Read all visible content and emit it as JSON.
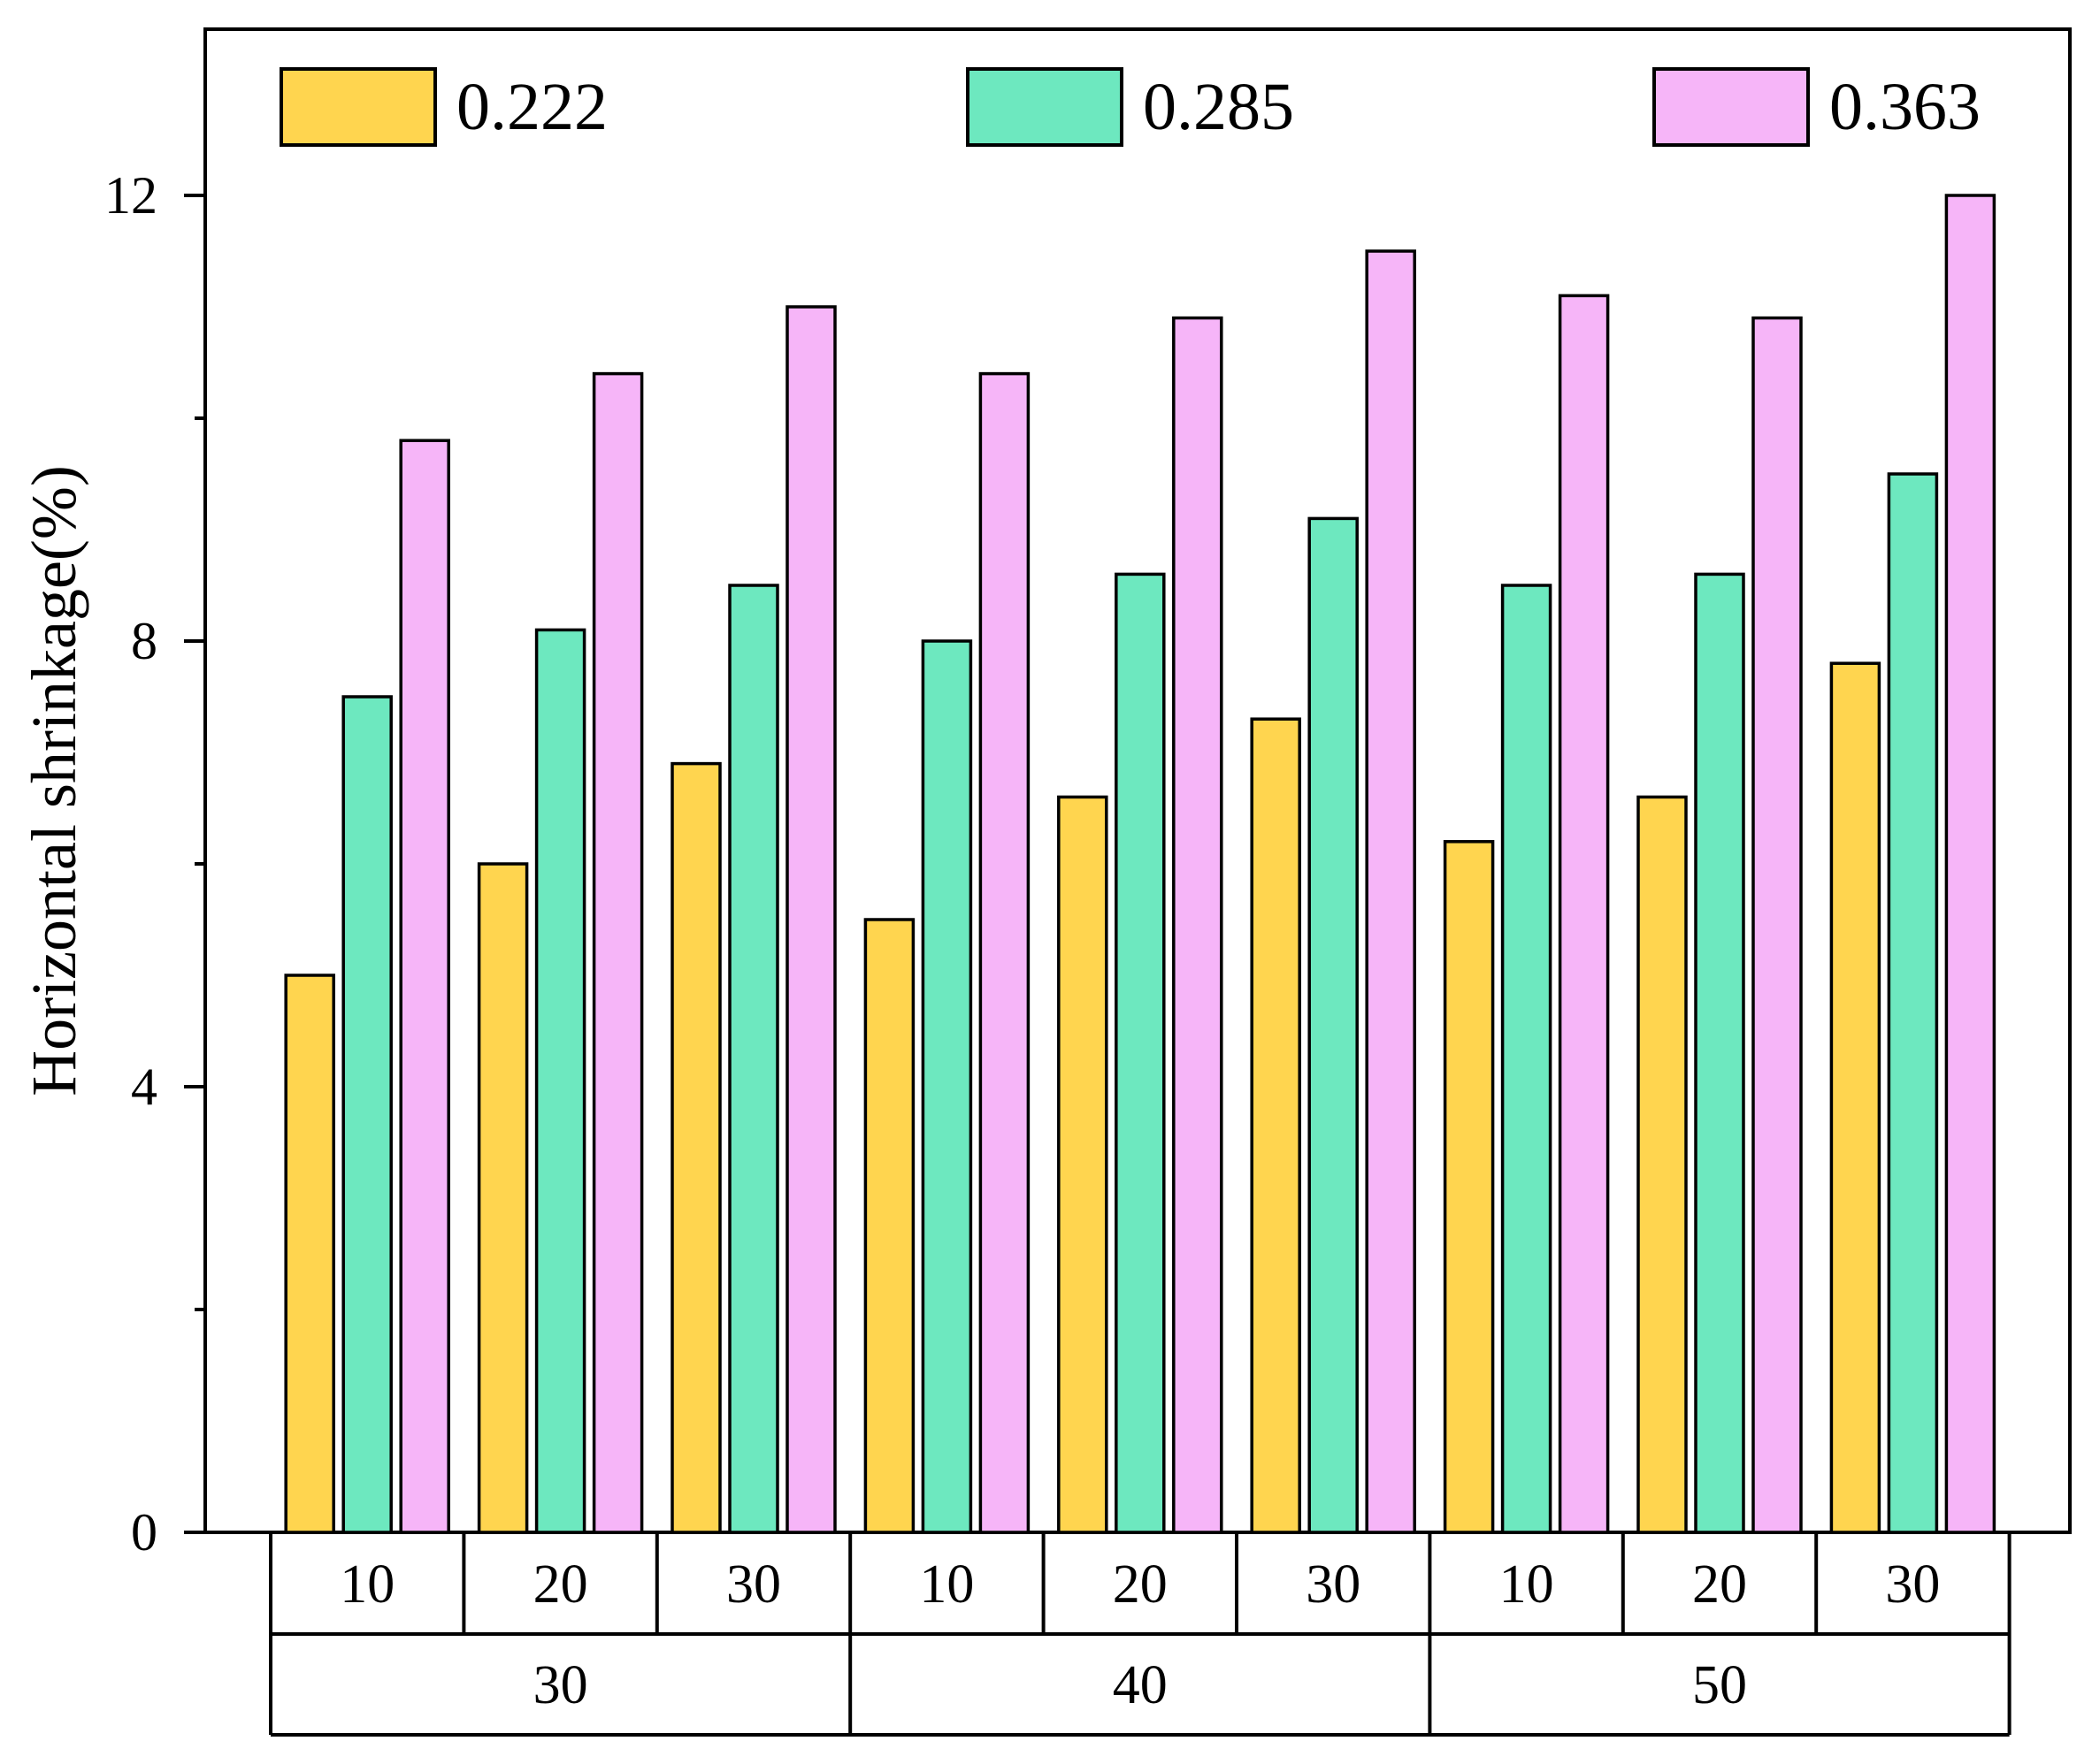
{
  "chart_data": {
    "type": "bar",
    "title": "",
    "xlabel": "",
    "ylabel": "Horizontal shrinkage(%)",
    "ylim": [
      0,
      13.2
    ],
    "yticks": [
      0,
      4,
      8,
      12
    ],
    "grid": false,
    "legend_position": "top",
    "categories": [
      {
        "inner": "10",
        "outer": "30"
      },
      {
        "inner": "20",
        "outer": "30"
      },
      {
        "inner": "30",
        "outer": "30"
      },
      {
        "inner": "10",
        "outer": "40"
      },
      {
        "inner": "20",
        "outer": "40"
      },
      {
        "inner": "30",
        "outer": "40"
      },
      {
        "inner": "10",
        "outer": "50"
      },
      {
        "inner": "20",
        "outer": "50"
      },
      {
        "inner": "30",
        "outer": "50"
      }
    ],
    "outer_groups": [
      "30",
      "40",
      "50"
    ],
    "series": [
      {
        "name": "0.222",
        "color": "#FFD54F",
        "values": [
          5.0,
          6.0,
          6.9,
          5.5,
          6.6,
          7.3,
          6.2,
          6.6,
          7.8
        ]
      },
      {
        "name": "0.285",
        "color": "#6DE8BF",
        "values": [
          7.5,
          8.1,
          8.5,
          8.0,
          8.6,
          9.1,
          8.5,
          8.6,
          9.5
        ]
      },
      {
        "name": "0.363",
        "color": "#F6B5F8",
        "values": [
          9.8,
          10.4,
          11.0,
          10.4,
          10.9,
          11.5,
          11.1,
          10.9,
          12.0
        ]
      }
    ]
  }
}
